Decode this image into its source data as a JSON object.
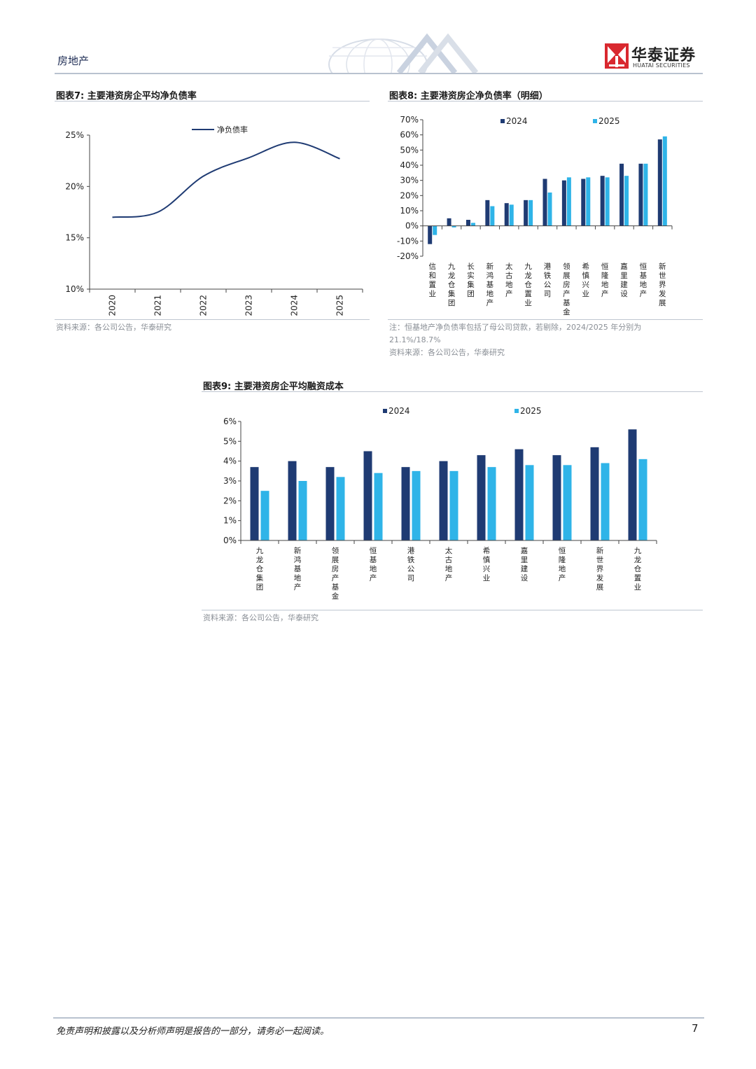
{
  "header": {
    "section": "房地产",
    "logo_cn": "华泰证券",
    "logo_en": "HUATAI SECURITIES"
  },
  "colors": {
    "series_2024": "#1f3b73",
    "series_2025": "#2fb4e8",
    "line": "#1f3b73",
    "logo_red": "#d9282f"
  },
  "charts": {
    "fig7": {
      "title": "图表7:  主要港资房企平均净负债率",
      "source": "资料来源：各公司公告，华泰研究"
    },
    "fig8": {
      "title": "图表8:  主要港资房企净负债率（明细）",
      "note": "注：恒基地产净负债率包括了母公司贷款，若剔除，2024/2025 年分别为",
      "note2": "21.1%/18.7%",
      "source": "资料来源：各公司公告，华泰研究"
    },
    "fig9": {
      "title": "图表9:  主要港资房企平均融资成本",
      "source": "资料来源：各公司公告，华泰研究"
    }
  },
  "chart_data": [
    {
      "type": "line",
      "title": "图表7:  主要港资房企平均净负债率",
      "x": [
        "2020",
        "2021",
        "2022",
        "2023",
        "2024",
        "2025"
      ],
      "series": [
        {
          "name": "净负债率",
          "values": [
            17.0,
            17.5,
            21.0,
            22.8,
            24.3,
            22.7
          ]
        }
      ],
      "ylim": [
        10,
        25
      ],
      "yticks": [
        "10%",
        "15%",
        "20%",
        "25%"
      ],
      "legend": "top",
      "grid": false
    },
    {
      "type": "bar",
      "title": "图表8:  主要港资房企净负债率（明细）",
      "categories": [
        "信和置业",
        "九龙仓集团",
        "长实集团",
        "新鸿基地产",
        "太古地产",
        "九龙仓置业",
        "港铁公司",
        "领展房产基金",
        "希慎兴业",
        "恒隆地产",
        "嘉里建设",
        "恒基地产",
        "新世界发展"
      ],
      "series": [
        {
          "name": "2024",
          "values": [
            -12,
            5,
            4,
            17,
            15,
            17,
            31,
            30,
            31,
            33,
            41,
            41,
            57
          ]
        },
        {
          "name": "2025",
          "values": [
            -6,
            -1,
            2,
            13,
            14,
            17,
            22,
            32,
            32,
            32,
            33,
            41,
            59
          ]
        }
      ],
      "ylim": [
        -20,
        70
      ],
      "yticks": [
        "-20%",
        "-10%",
        "0%",
        "10%",
        "20%",
        "30%",
        "40%",
        "50%",
        "60%",
        "70%"
      ],
      "legend": "top",
      "grid": false
    },
    {
      "type": "bar",
      "title": "图表9:  主要港资房企平均融资成本",
      "categories": [
        "九龙仓集团",
        "新鸿基地产",
        "领展房产基金",
        "恒基地产",
        "港铁公司",
        "太古地产",
        "希慎兴业",
        "嘉里建设",
        "恒隆地产",
        "新世界发展",
        "九龙仓置业"
      ],
      "series": [
        {
          "name": "2024",
          "values": [
            3.7,
            4.0,
            3.7,
            4.5,
            3.7,
            4.0,
            4.3,
            4.6,
            4.3,
            4.7,
            5.6
          ]
        },
        {
          "name": "2025",
          "values": [
            2.5,
            3.0,
            3.2,
            3.4,
            3.5,
            3.5,
            3.7,
            3.8,
            3.8,
            3.9,
            4.1
          ]
        }
      ],
      "ylim": [
        0,
        6
      ],
      "yticks": [
        "0%",
        "1%",
        "2%",
        "3%",
        "4%",
        "5%",
        "6%"
      ],
      "legend": "top",
      "grid": false
    }
  ],
  "footer": {
    "disclaimer": "免责声明和披露以及分析师声明是报告的一部分，请务必一起阅读。",
    "page": "7"
  }
}
